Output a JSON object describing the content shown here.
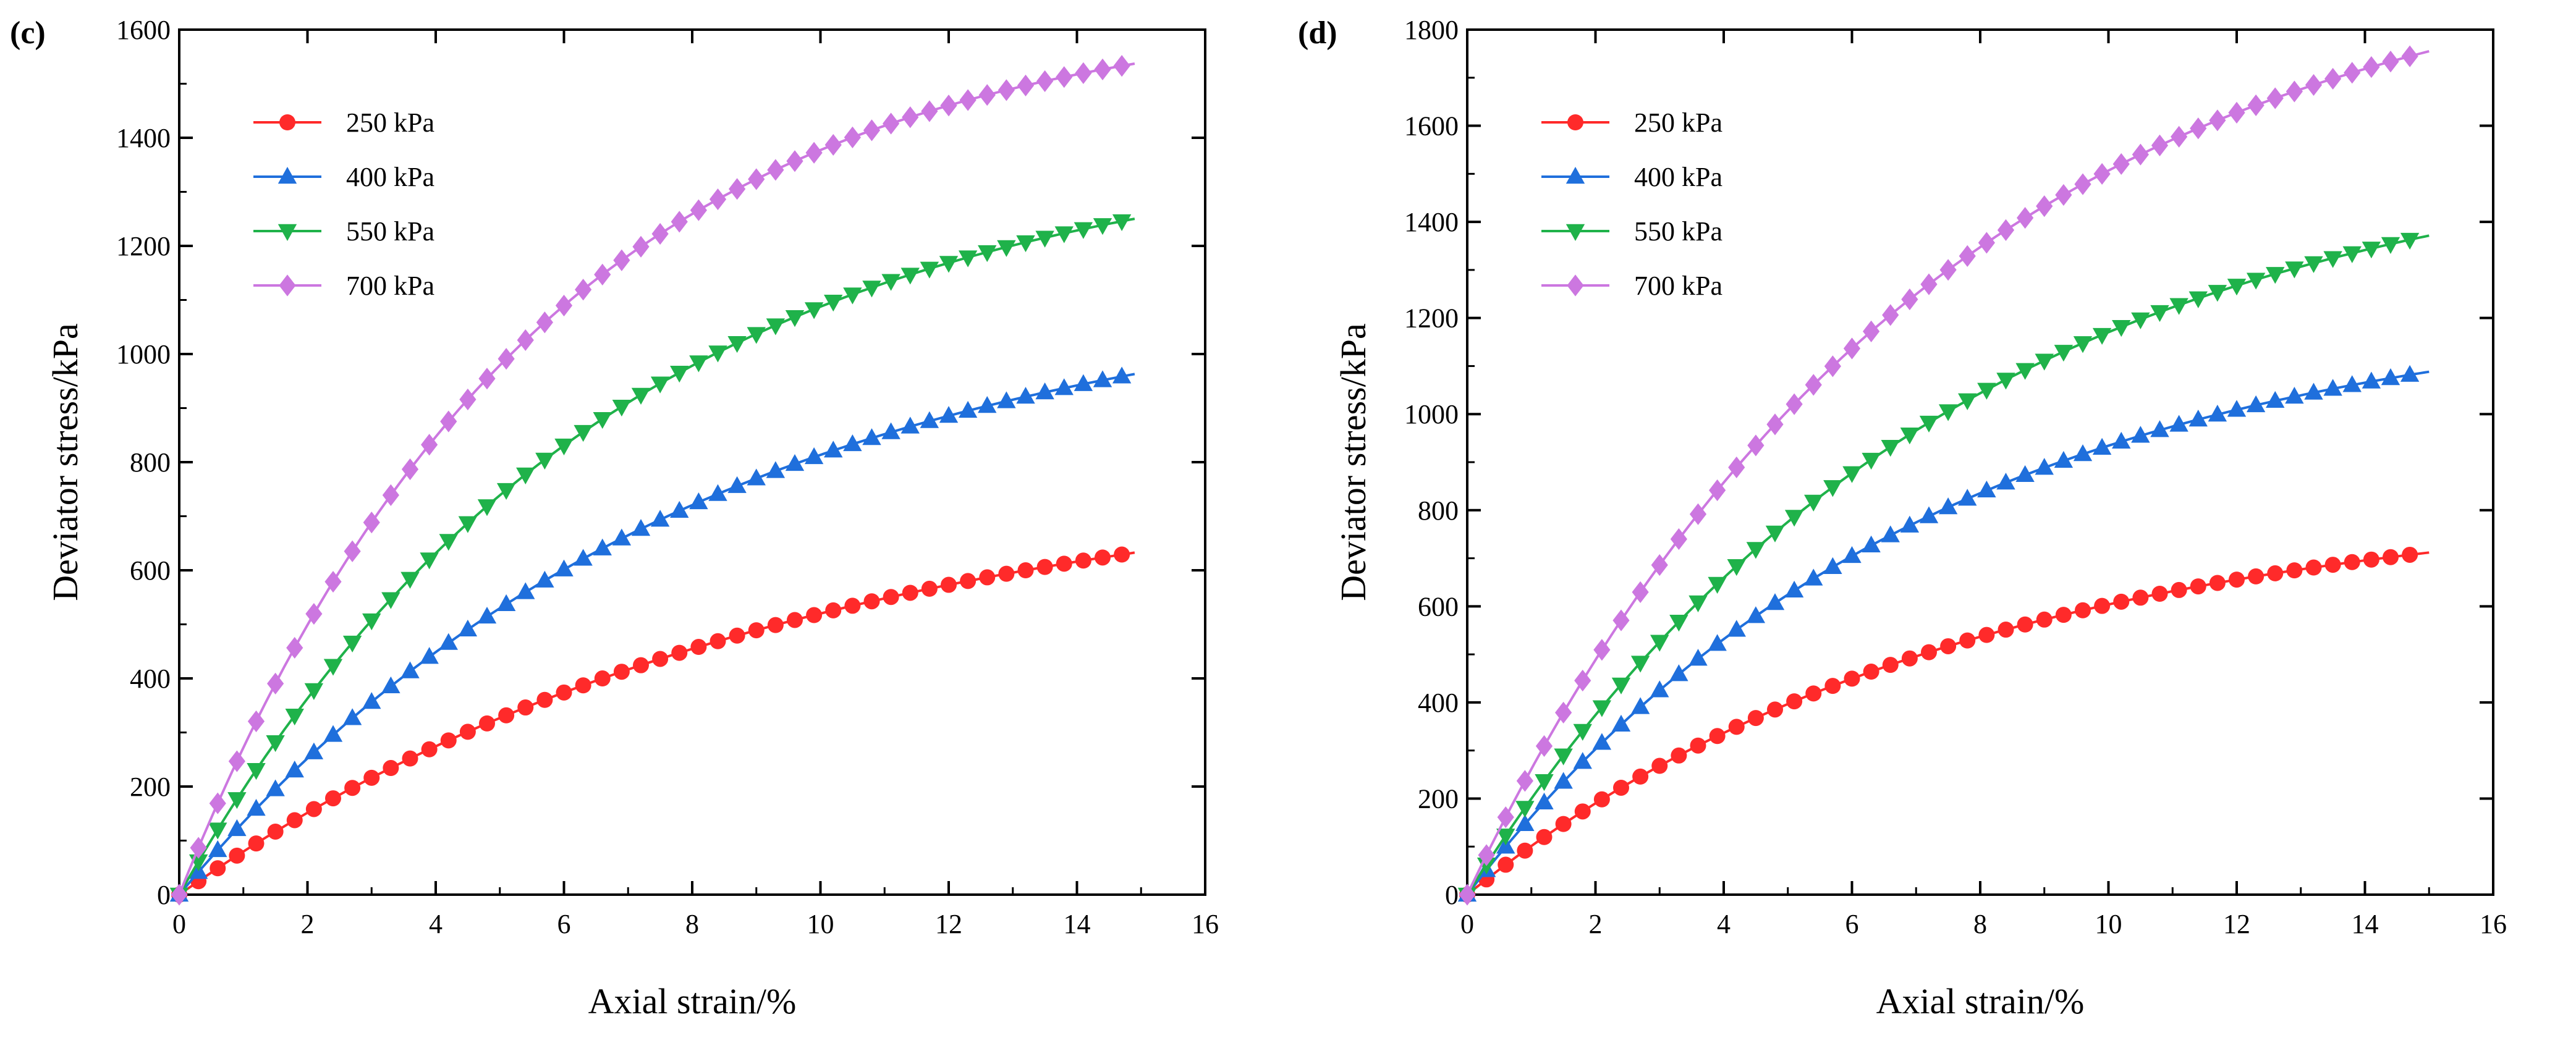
{
  "chart_data": [
    {
      "type": "line",
      "panel_label": "(c)",
      "xlabel": "Axial strain/%",
      "ylabel": "Deviator stress/kPa",
      "xlim": [
        0,
        16
      ],
      "ylim": [
        0,
        1600
      ],
      "xticks": [
        0,
        2,
        4,
        6,
        8,
        10,
        12,
        14,
        16
      ],
      "yticks": [
        0,
        200,
        400,
        600,
        800,
        1000,
        1200,
        1400,
        1600
      ],
      "grid": false,
      "legend_position": "top-left",
      "x_max": 14.9,
      "series": [
        {
          "name": "250 kPa",
          "color": "#ff2a2a",
          "marker": "circle",
          "asymptote": 800,
          "rate": 0.105
        },
        {
          "name": "400 kPa",
          "color": "#1f6fdc",
          "marker": "triangle-up",
          "asymptote": 1140,
          "rate": 0.125
        },
        {
          "name": "550 kPa",
          "color": "#1fb24a",
          "marker": "triangle-down",
          "asymptote": 1400,
          "rate": 0.15
        },
        {
          "name": "700 kPa",
          "color": "#cc77e0",
          "marker": "diamond",
          "asymptote": 1650,
          "rate": 0.18
        }
      ]
    },
    {
      "type": "line",
      "panel_label": "(d)",
      "xlabel": "Axial strain/%",
      "ylabel": "Deviator stress/kPa",
      "xlim": [
        0,
        16
      ],
      "ylim": [
        0,
        1800
      ],
      "xticks": [
        0,
        2,
        4,
        6,
        8,
        10,
        12,
        14,
        16
      ],
      "yticks": [
        0,
        200,
        400,
        600,
        800,
        1000,
        1200,
        1400,
        1600,
        1800
      ],
      "grid": false,
      "legend_position": "top-left",
      "x_max": 15.0,
      "series": [
        {
          "name": "250 kPa",
          "color": "#ff2a2a",
          "marker": "circle",
          "asymptote": 830,
          "rate": 0.13
        },
        {
          "name": "400 kPa",
          "color": "#1f6fdc",
          "marker": "triangle-up",
          "asymptote": 1240,
          "rate": 0.14
        },
        {
          "name": "550 kPa",
          "color": "#1fb24a",
          "marker": "triangle-down",
          "asymptote": 1580,
          "rate": 0.135
        },
        {
          "name": "700 kPa",
          "color": "#cc77e0",
          "marker": "diamond",
          "asymptote": 2000,
          "rate": 0.14
        }
      ]
    }
  ]
}
